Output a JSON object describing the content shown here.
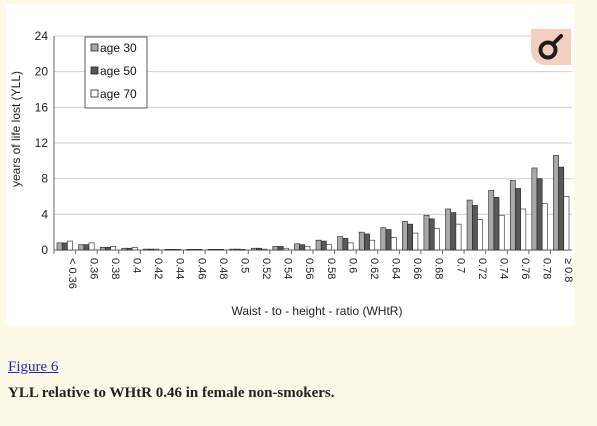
{
  "figure": {
    "link_text": "Figure 6",
    "caption": "YLL relative to WHtR 0.46 in female non-smokers.",
    "badge_icon": "open-access-key-icon"
  },
  "chart_data": {
    "type": "bar",
    "xlabel": "Waist - to - height - ratio (WHtR)",
    "ylabel": "years of life lost (YLL)",
    "ylim": [
      0,
      24
    ],
    "yticks": [
      0,
      4,
      8,
      12,
      16,
      20,
      24
    ],
    "grid": true,
    "legend_position": "top-left",
    "categories": [
      "< 0.36",
      "0.36",
      "0.38",
      "0.4",
      "0.42",
      "0.44",
      "0.46",
      "0.48",
      "0.5",
      "0.52",
      "0.54",
      "0.56",
      "0.58",
      "0.6",
      "0.62",
      "0.64",
      "0.66",
      "0.68",
      "0.7",
      "0.72",
      "0.74",
      "0.76",
      "0.78",
      "≥ 0.8"
    ],
    "series": [
      {
        "name": "age 30",
        "color": "#a9a9a9",
        "values": [
          0.8,
          0.6,
          0.3,
          0.2,
          0.1,
          0.05,
          0,
          0.05,
          0.1,
          0.2,
          0.4,
          0.7,
          1.1,
          1.5,
          2.0,
          2.5,
          3.2,
          3.9,
          4.6,
          5.6,
          6.7,
          7.8,
          9.2,
          10.6
        ]
      },
      {
        "name": "age 50",
        "color": "#585858",
        "values": [
          0.8,
          0.6,
          0.3,
          0.2,
          0.1,
          0.05,
          0,
          0.05,
          0.1,
          0.2,
          0.4,
          0.6,
          1.0,
          1.3,
          1.8,
          2.3,
          2.9,
          3.5,
          4.2,
          5.0,
          5.9,
          6.9,
          8.0,
          9.3
        ]
      },
      {
        "name": "age 70",
        "color": "#ffffff",
        "values": [
          1.0,
          0.8,
          0.4,
          0.3,
          0.1,
          0.05,
          0,
          0.05,
          0.05,
          0.1,
          0.2,
          0.4,
          0.6,
          0.8,
          1.1,
          1.4,
          1.9,
          2.4,
          2.9,
          3.4,
          3.9,
          4.6,
          5.2,
          6.0
        ]
      }
    ]
  }
}
